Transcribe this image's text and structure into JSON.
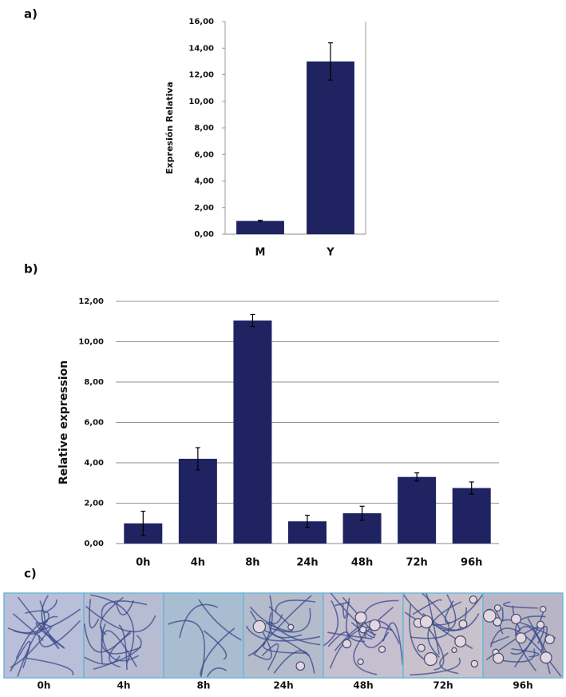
{
  "panel_labels": [
    "a)",
    "b)",
    "c)"
  ],
  "chart_data": [
    {
      "type": "bar",
      "ylabel": "Expresión Relativa",
      "categories": [
        "M",
        "Y"
      ],
      "series": [
        {
          "color": "#1f2361",
          "values": [
            1.0,
            13.0
          ],
          "errors": [
            0.05,
            1.4
          ]
        }
      ],
      "ylim": [
        0,
        16
      ],
      "yticks": [
        {
          "value": 0,
          "label": "0,00"
        },
        {
          "value": 2,
          "label": "2,00"
        },
        {
          "value": 4,
          "label": "4,00"
        },
        {
          "value": 6,
          "label": "6,00"
        },
        {
          "value": 8,
          "label": "8,00"
        },
        {
          "value": 10,
          "label": "10,00"
        },
        {
          "value": 12,
          "label": "12,00"
        },
        {
          "value": 14,
          "label": "14,00"
        },
        {
          "value": 16,
          "label": "16,00"
        }
      ],
      "grid": false
    },
    {
      "type": "bar",
      "ylabel": "Relative  expression",
      "categories": [
        "0h",
        "4h",
        "8h",
        "24h",
        "48h",
        "72h",
        "96h"
      ],
      "series": [
        {
          "color": "#1f2361",
          "values": [
            1.0,
            4.2,
            11.05,
            1.1,
            1.5,
            3.3,
            2.75
          ],
          "errors": [
            0.6,
            0.55,
            0.3,
            0.3,
            0.35,
            0.2,
            0.3
          ]
        }
      ],
      "ylim": [
        0,
        12
      ],
      "yticks": [
        {
          "value": 0,
          "label": "0,00"
        },
        {
          "value": 2,
          "label": "2,00"
        },
        {
          "value": 4,
          "label": "4,00"
        },
        {
          "value": 6,
          "label": "6,00"
        },
        {
          "value": 8,
          "label": "8,00"
        },
        {
          "value": 10,
          "label": "10,00"
        },
        {
          "value": 12,
          "label": "12,00"
        }
      ],
      "grid": true
    }
  ],
  "micrographs": {
    "labels": [
      "0h",
      "4h",
      "8h",
      "24h",
      "48h",
      "72h",
      "96h"
    ]
  }
}
